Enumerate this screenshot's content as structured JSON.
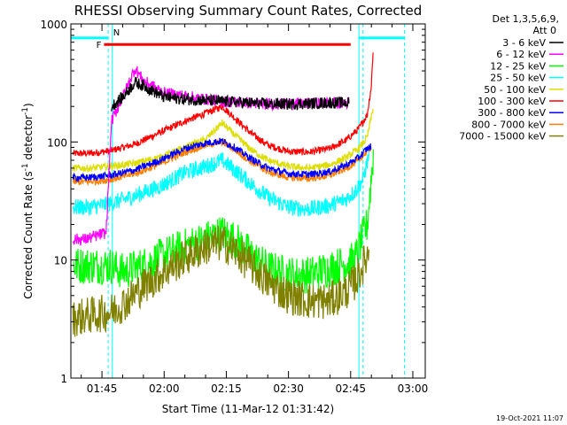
{
  "chart_data": {
    "type": "line",
    "title": "RHESSI Observing Summary Count Rates, Corrected",
    "xlabel": "Start Time (11-Mar-12 01:31:42)",
    "ylabel_prefix": "Corrected Count Rate (s",
    "ylabel_sup": "-1",
    "ylabel_suffix": " detector",
    "ylabel_tail": ")",
    "yscale": "log",
    "ylim": [
      1,
      1000
    ],
    "xlim_minutes": [
      -7.5,
      78
    ],
    "x_ticks": [
      {
        "minute": 0,
        "label": "01:45"
      },
      {
        "minute": 15,
        "label": "02:00"
      },
      {
        "minute": 30,
        "label": "02:15"
      },
      {
        "minute": 45,
        "label": "02:30"
      },
      {
        "minute": 60,
        "label": "02:45"
      },
      {
        "minute": 75,
        "label": "03:00"
      }
    ],
    "y_ticks": [
      {
        "value": 1,
        "label": "1"
      },
      {
        "value": 10,
        "label": "10"
      },
      {
        "value": 100,
        "label": "100"
      },
      {
        "value": 1000,
        "label": "1000"
      }
    ],
    "legend_title_1": "Det 1,3,5,6,9,",
    "legend_title_2": "Att 0",
    "legend_position": "right",
    "flags": {
      "F": {
        "label": "F",
        "start_minute": 0.5,
        "end_minute": 60,
        "level": 670,
        "color": "#ff0000"
      },
      "N": {
        "label": "N",
        "start_minute": 2.5,
        "level": 760,
        "color": "#00ffff"
      }
    },
    "night_bars": [
      {
        "start_minute": -7.5,
        "end_minute": 1.5
      },
      {
        "start_minute": 62,
        "end_minute": 73
      }
    ],
    "night_bar_level": 760,
    "markers_solid": [
      -7.5,
      2.5,
      62
    ],
    "markers_dashed": [
      1.5,
      63,
      73
    ],
    "series": [
      {
        "name": "3 - 6 keV",
        "color": "#000000",
        "start_minute": 2.3,
        "values": [
          [
            2.3,
            200
          ],
          [
            5,
            240
          ],
          [
            8,
            320
          ],
          [
            10,
            300
          ],
          [
            15,
            240
          ],
          [
            20,
            230
          ],
          [
            25,
            225
          ],
          [
            30,
            220
          ],
          [
            35,
            215
          ],
          [
            40,
            210
          ],
          [
            45,
            210
          ],
          [
            50,
            212
          ],
          [
            55,
            215
          ],
          [
            59.7,
            215
          ]
        ]
      },
      {
        "name": "6 - 12 keV",
        "color": "#ff00ff",
        "values": [
          [
            -7,
            15
          ],
          [
            -4,
            15
          ],
          [
            1,
            17
          ],
          [
            2.3,
            150
          ],
          [
            5,
            240
          ],
          [
            8,
            420
          ],
          [
            10,
            330
          ],
          [
            15,
            260
          ],
          [
            20,
            245
          ],
          [
            25,
            230
          ],
          [
            30,
            220
          ],
          [
            35,
            215
          ],
          [
            40,
            210
          ],
          [
            45,
            210
          ],
          [
            50,
            212
          ],
          [
            55,
            215
          ],
          [
            59.7,
            215
          ]
        ]
      },
      {
        "name": "12 - 25 keV",
        "color": "#00ff00",
        "values": [
          [
            -7,
            9
          ],
          [
            -4,
            9
          ],
          [
            2,
            9
          ],
          [
            5,
            8
          ],
          [
            10,
            9
          ],
          [
            15,
            11
          ],
          [
            20,
            13
          ],
          [
            25,
            15
          ],
          [
            29,
            17
          ],
          [
            32,
            15
          ],
          [
            36,
            11
          ],
          [
            40,
            8.5
          ],
          [
            45,
            7.5
          ],
          [
            50,
            7.5
          ],
          [
            55,
            8.5
          ],
          [
            59,
            9.5
          ],
          [
            61,
            10
          ],
          [
            64,
            20
          ],
          [
            65.5,
            80
          ]
        ]
      },
      {
        "name": "25 - 50 keV",
        "color": "#00ffff",
        "values": [
          [
            -7,
            28
          ],
          [
            -3,
            28
          ],
          [
            2,
            30
          ],
          [
            8,
            35
          ],
          [
            14,
            42
          ],
          [
            20,
            55
          ],
          [
            25,
            62
          ],
          [
            29,
            70
          ],
          [
            32,
            58
          ],
          [
            36,
            44
          ],
          [
            40,
            34
          ],
          [
            45,
            28
          ],
          [
            50,
            27
          ],
          [
            55,
            29
          ],
          [
            59,
            33
          ],
          [
            61,
            38
          ],
          [
            63,
            48
          ],
          [
            64.5,
            80
          ]
        ]
      },
      {
        "name": "50 - 100 keV",
        "color": "#dddd00",
        "values": [
          [
            -7,
            60
          ],
          [
            -3,
            60
          ],
          [
            2,
            62
          ],
          [
            8,
            66
          ],
          [
            14,
            74
          ],
          [
            20,
            90
          ],
          [
            25,
            105
          ],
          [
            29,
            145
          ],
          [
            32,
            115
          ],
          [
            36,
            86
          ],
          [
            40,
            70
          ],
          [
            45,
            62
          ],
          [
            50,
            60
          ],
          [
            55,
            64
          ],
          [
            59,
            74
          ],
          [
            62,
            88
          ],
          [
            64,
            110
          ],
          [
            65.5,
            200
          ]
        ]
      },
      {
        "name": "100 - 300 keV",
        "color": "#ff0000",
        "values": [
          [
            -7,
            80
          ],
          [
            -3,
            80
          ],
          [
            2,
            84
          ],
          [
            8,
            96
          ],
          [
            14,
            120
          ],
          [
            20,
            150
          ],
          [
            25,
            175
          ],
          [
            29,
            200
          ],
          [
            32,
            160
          ],
          [
            36,
            118
          ],
          [
            40,
            94
          ],
          [
            45,
            83
          ],
          [
            50,
            82
          ],
          [
            55,
            88
          ],
          [
            59,
            104
          ],
          [
            62,
            130
          ],
          [
            64,
            170
          ],
          [
            65,
            300
          ],
          [
            65.5,
            700
          ]
        ]
      },
      {
        "name": "300 - 800 keV",
        "color": "#0000ff",
        "values": [
          [
            -7,
            50
          ],
          [
            -3,
            50
          ],
          [
            2,
            52
          ],
          [
            8,
            58
          ],
          [
            14,
            70
          ],
          [
            20,
            88
          ],
          [
            25,
            98
          ],
          [
            29,
            102
          ],
          [
            32,
            90
          ],
          [
            36,
            72
          ],
          [
            40,
            60
          ],
          [
            45,
            54
          ],
          [
            50,
            53
          ],
          [
            55,
            56
          ],
          [
            59,
            64
          ],
          [
            62,
            74
          ],
          [
            64,
            88
          ],
          [
            65,
            92
          ]
        ]
      },
      {
        "name": "800 - 7000 keV",
        "color": "#ff8000",
        "values": [
          [
            -7,
            46
          ],
          [
            -3,
            46
          ],
          [
            2,
            48
          ],
          [
            8,
            54
          ],
          [
            14,
            65
          ],
          [
            20,
            82
          ],
          [
            25,
            94
          ],
          [
            29,
            100
          ],
          [
            32,
            86
          ],
          [
            36,
            68
          ],
          [
            40,
            56
          ],
          [
            45,
            50
          ],
          [
            50,
            49
          ],
          [
            55,
            52
          ],
          [
            59,
            60
          ],
          [
            62,
            70
          ],
          [
            64,
            84
          ],
          [
            65,
            90
          ]
        ]
      },
      {
        "name": "7000 - 15000 keV",
        "color": "#808000",
        "values": [
          [
            -7,
            3.2
          ],
          [
            -3,
            3.4
          ],
          [
            2,
            3.6
          ],
          [
            6,
            4.5
          ],
          [
            10,
            6
          ],
          [
            15,
            8
          ],
          [
            20,
            10.5
          ],
          [
            25,
            13
          ],
          [
            29,
            14
          ],
          [
            32,
            12
          ],
          [
            36,
            9
          ],
          [
            40,
            6.5
          ],
          [
            45,
            5
          ],
          [
            50,
            4.5
          ],
          [
            55,
            4.5
          ],
          [
            59,
            5.5
          ],
          [
            61,
            6.5
          ],
          [
            63,
            9
          ],
          [
            64.5,
            12
          ]
        ]
      }
    ],
    "timestamp": "19-Oct-2021 11:07"
  }
}
